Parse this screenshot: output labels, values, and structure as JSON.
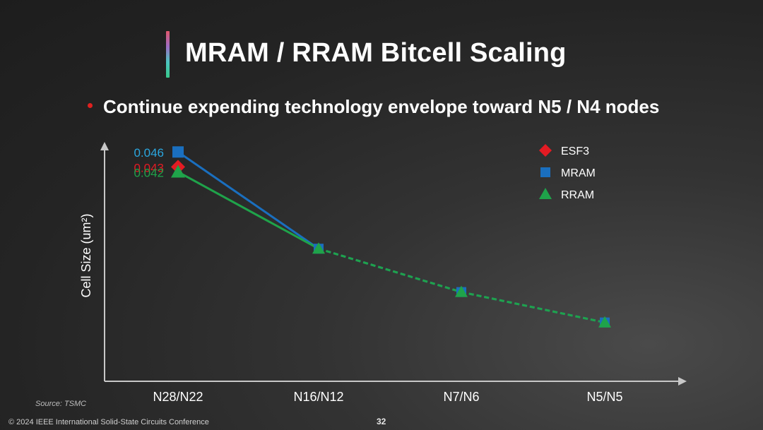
{
  "slide": {
    "title": "MRAM / RRAM Bitcell Scaling",
    "bullet": "Continue expending technology envelope toward N5 / N4 nodes",
    "source": "Source: TSMC",
    "copyright": "© 2024 IEEE International Solid-State Circuits Conference",
    "page_number": "32"
  },
  "colors": {
    "esf3": "#e31b23",
    "mram": "#1a6fbf",
    "mram_label": "#2aa7e0",
    "rram": "#1fa34a",
    "axis": "#c8c8c8",
    "bullet": "#e0201f"
  },
  "chart_data": {
    "type": "line",
    "title": "",
    "ylabel": "Cell Size (um²)",
    "xlabel": "",
    "categories": [
      "N28/N22",
      "N16/N12",
      "N7/N6",
      "N5/N5"
    ],
    "ylim": [
      0,
      0.05
    ],
    "grid": false,
    "legend_position": "top-right",
    "series": [
      {
        "name": "ESF3",
        "marker": "diamond",
        "color": "#e31b23",
        "values": [
          0.043,
          null,
          null,
          null
        ],
        "labels": [
          "0.043",
          null,
          null,
          null
        ]
      },
      {
        "name": "MRAM",
        "marker": "square",
        "color": "#1a6fbf",
        "label_color": "#2aa7e0",
        "values": [
          0.046,
          0.0266,
          0.0179,
          0.0118
        ],
        "labels": [
          "0.046",
          null,
          null,
          null
        ]
      },
      {
        "name": "RRAM",
        "marker": "triangle",
        "color": "#1fa34a",
        "values": [
          0.042,
          0.0266,
          0.0179,
          0.0118
        ],
        "labels": [
          "0.042",
          null,
          null,
          null
        ]
      }
    ]
  }
}
